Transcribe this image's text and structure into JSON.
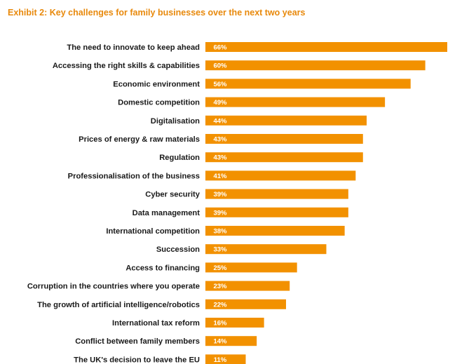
{
  "chart_data": {
    "type": "bar",
    "orientation": "horizontal",
    "title": "Exhibit 2: Key challenges for family businesses over the next two years",
    "categories": [
      "The need to innovate to keep ahead",
      "Accessing the right skills & capabilities",
      "Economic environment",
      "Domestic competition",
      "Digitalisation",
      "Prices of energy & raw materials",
      "Regulation",
      "Professionalisation of the business",
      "Cyber security",
      "Data management",
      "International competition",
      "Succession",
      "Access to financing",
      "Corruption in the countries where you operate",
      "The growth of artificial intelligence/robotics",
      "International tax reform",
      "Conflict between family members",
      "The UK's decision to leave the EU"
    ],
    "values": [
      66,
      60,
      56,
      49,
      44,
      43,
      43,
      41,
      39,
      39,
      38,
      33,
      25,
      23,
      22,
      16,
      14,
      11
    ],
    "value_labels": [
      "66%",
      "60%",
      "56%",
      "49%",
      "44%",
      "43%",
      "43%",
      "41%",
      "39%",
      "39%",
      "38%",
      "33%",
      "25%",
      "23%",
      "22%",
      "16%",
      "14%",
      "11%"
    ],
    "unit": "%",
    "xlim": [
      0,
      66
    ],
    "grid": false,
    "legend": "none",
    "colors": {
      "bar": "#f29100",
      "bar_label": "#ffffff",
      "category_label": "#1a1a1a",
      "title": "#e8890c"
    }
  }
}
